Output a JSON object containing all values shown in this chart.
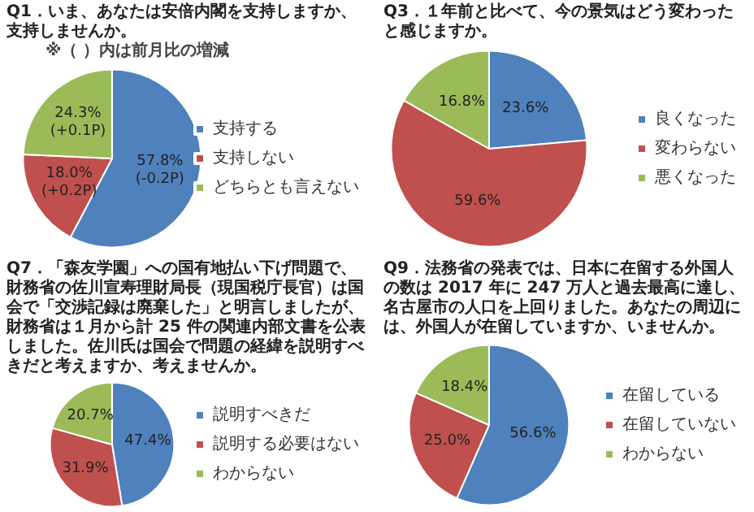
{
  "chart_data": [
    {
      "type": "pie",
      "title": "Q1．いま、あなたは安倍内閣を支持しますか、支持しませんか。",
      "subtitle": "※（ ）内は前月比の増減",
      "categories": [
        "支持する",
        "支持しない",
        "どちらとも言えない"
      ],
      "values": [
        57.8,
        18.0,
        24.3
      ],
      "colors": [
        "#4f81bd",
        "#c0504d",
        "#9bbb59"
      ],
      "value_labels": [
        "57.8%\n(-0.2P)",
        "18.0%\n(+0.2P)",
        "24.3%\n(+0.1P)"
      ],
      "legend": "right"
    },
    {
      "type": "pie",
      "title": "Q3．１年前と比べて、今の景気はどう変わったと感じますか。",
      "categories": [
        "良くなった",
        "変わらない",
        "悪くなった"
      ],
      "values": [
        23.6,
        59.6,
        16.8
      ],
      "colors": [
        "#4f81bd",
        "#c0504d",
        "#9bbb59"
      ],
      "value_labels": [
        "23.6%",
        "59.6%",
        "16.8%"
      ],
      "legend": "right"
    },
    {
      "type": "pie",
      "title": "Q7．「森友学園」への国有地払い下げ問題で、財務省の佐川宣寿理財局長（現国税庁長官）は国会で「交渉記録は廃棄した」と明言しましたが、財務省は１月から計 25 件の関連内部文書を公表しました。佐川氏は国会で問題の経緯を説明すべきだと考えますか、考えませんか。",
      "categories": [
        "説明すべきだ",
        "説明する必要はない",
        "わからない"
      ],
      "values": [
        47.4,
        31.9,
        20.7
      ],
      "colors": [
        "#4f81bd",
        "#c0504d",
        "#9bbb59"
      ],
      "value_labels": [
        "47.4%",
        "31.9%",
        "20.7%"
      ],
      "legend": "right"
    },
    {
      "type": "pie",
      "title": "Q9．法務省の発表では、日本に在留する外国人の数は 2017 年に 247 万人と過去最高に達し、名古屋市の人口を上回りました。あなたの周辺には、外国人が在留していますか、いませんか。",
      "categories": [
        "在留している",
        "在留していない",
        "わからない"
      ],
      "values": [
        56.6,
        25.0,
        18.4
      ],
      "colors": [
        "#4f81bd",
        "#c0504d",
        "#9bbb59"
      ],
      "value_labels": [
        "56.6%",
        "25.0%",
        "18.4%"
      ],
      "legend": "right"
    }
  ]
}
